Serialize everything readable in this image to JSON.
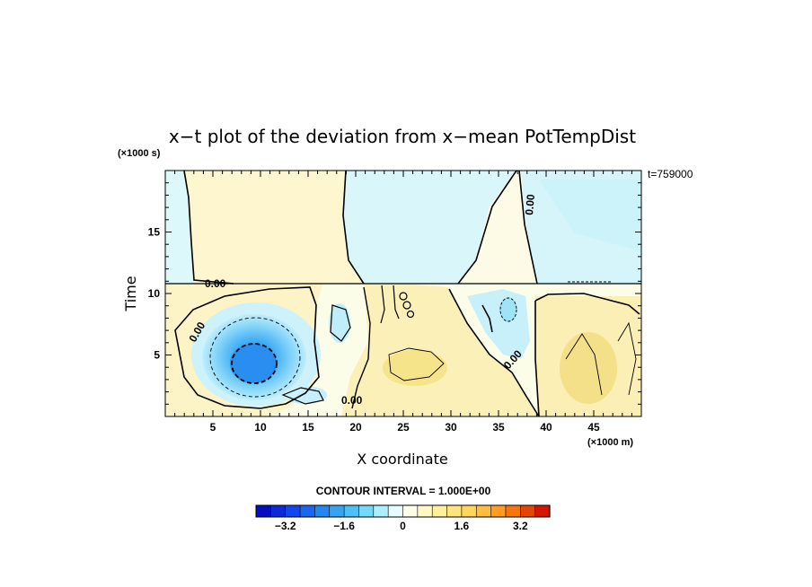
{
  "chart_data": {
    "type": "heatmap",
    "title": "x−t plot of the deviation from x−mean PotTempDist",
    "xlabel": "X coordinate",
    "ylabel": "Time",
    "x_unit": "(×1000 m)",
    "y_unit": "(×1000 s)",
    "time_note": "t=759000",
    "xlim": [
      0,
      50
    ],
    "ylim": [
      0,
      20
    ],
    "x_ticks": [
      5,
      10,
      15,
      20,
      25,
      30,
      35,
      40,
      45
    ],
    "y_ticks": [
      5,
      10,
      15
    ],
    "contour_label": "0.00",
    "contour_interval_text": "CONTOUR INTERVAL = 1.000E+00",
    "colorbar": {
      "range": [
        -4,
        4
      ],
      "step": 0.4,
      "tick_values": [
        -3.2,
        -1.6,
        0,
        1.6,
        3.2
      ],
      "tick_labels": [
        "−3.2",
        "−1.6",
        "0",
        "1.6",
        "3.2"
      ]
    },
    "features": [
      {
        "kind": "cold-core",
        "x": 9.5,
        "t": 4.2,
        "min": -3.0
      },
      {
        "kind": "warm-patch",
        "x": 27.5,
        "t": 4.5,
        "max": 1.0
      },
      {
        "kind": "warm-patch",
        "x": 45,
        "t": 3,
        "max": 1.2
      },
      {
        "kind": "cold-patch",
        "x": 34,
        "t": 7.5,
        "min": -0.8
      }
    ]
  },
  "colors": {
    "axis": "#000000",
    "neg_strong": "#0000b4",
    "neg_mid": "#42b4f5",
    "neg_weak": "#c8f8ff",
    "pos_weak": "#fffad2",
    "pos_mid": "#ffdc64",
    "pos_strong": "#c80000"
  }
}
